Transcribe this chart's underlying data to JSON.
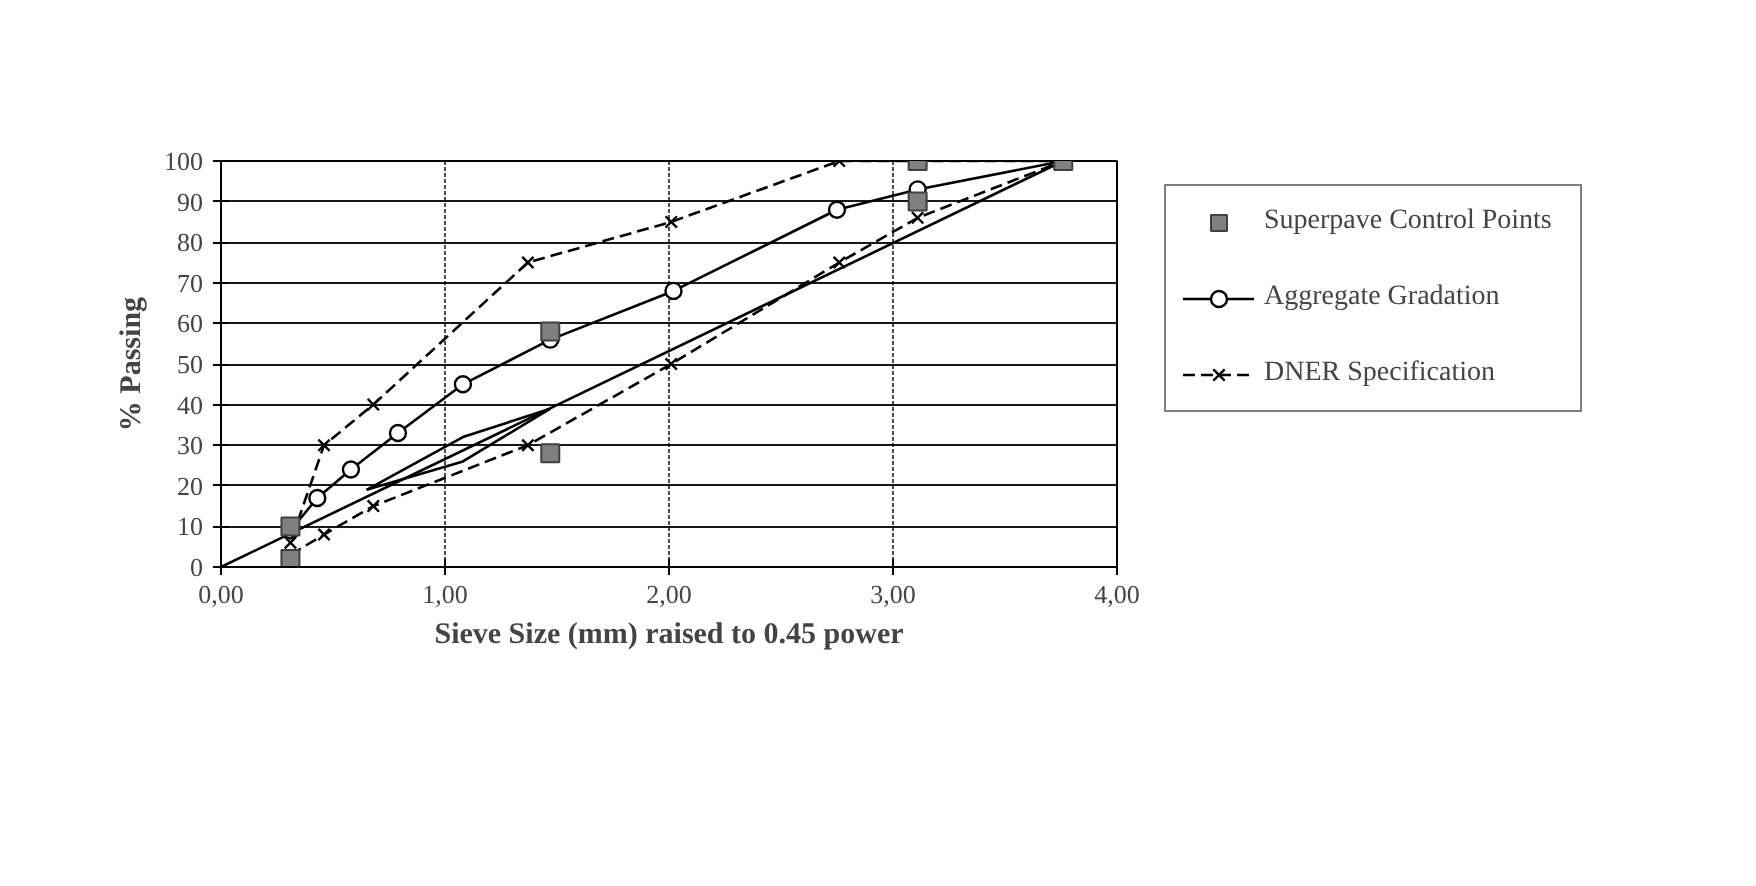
{
  "chart_data": {
    "type": "line",
    "xlabel": "Sieve Size (mm) raised to 0.45 power",
    "ylabel": "% Passing",
    "xlim": [
      0,
      4
    ],
    "ylim": [
      0,
      100
    ],
    "xticks": [
      {
        "value": 0,
        "label": "0,00"
      },
      {
        "value": 1,
        "label": "1,00"
      },
      {
        "value": 2,
        "label": "2,00"
      },
      {
        "value": 3,
        "label": "3,00"
      },
      {
        "value": 4,
        "label": "4,00"
      }
    ],
    "yticks": [
      0,
      10,
      20,
      30,
      40,
      50,
      60,
      70,
      80,
      90,
      100
    ],
    "grid": true,
    "legend": "right",
    "series": [
      {
        "name": "Superpave Control Points",
        "type": "scatter",
        "marker": "square",
        "color": "#808080",
        "x": [
          0.31,
          0.31,
          1.47,
          1.47,
          3.11,
          3.11,
          3.76
        ],
        "values": [
          2,
          10,
          28,
          58,
          90,
          100,
          100
        ]
      },
      {
        "name": "Aggregate Gradation",
        "marker": "circle",
        "line_style": "solid",
        "color": "#000000",
        "x": [
          0.31,
          0.43,
          0.58,
          0.79,
          1.08,
          1.47,
          2.02,
          2.75,
          3.11,
          3.76
        ],
        "values": [
          9,
          17,
          24,
          33,
          45,
          56,
          68,
          88,
          93,
          100
        ]
      },
      {
        "name": "DNER Specification",
        "marker": "cross",
        "line_style": "dashed",
        "color": "#000000",
        "x": [
          0.31,
          0.46,
          0.68,
          1.37,
          2.01,
          2.76,
          3.11,
          3.76,
          2.76,
          2.01,
          1.37,
          0.68,
          0.46,
          0.31
        ],
        "values": [
          3,
          8,
          15,
          30,
          50,
          75,
          86,
          100,
          100,
          85,
          75,
          40,
          30,
          6
        ]
      },
      {
        "line_style": "solid",
        "color": "#000000",
        "x": [
          0,
          3.76
        ],
        "values": [
          0,
          100
        ]
      },
      {
        "line_style": "solid",
        "color": "#000000",
        "x": [
          0.65,
          1.08,
          1.47
        ],
        "values": [
          19,
          32,
          39
        ]
      },
      {
        "line_style": "solid",
        "color": "#000000",
        "x": [
          0.65,
          1.08,
          1.47
        ],
        "values": [
          19,
          26,
          39
        ]
      }
    ]
  }
}
